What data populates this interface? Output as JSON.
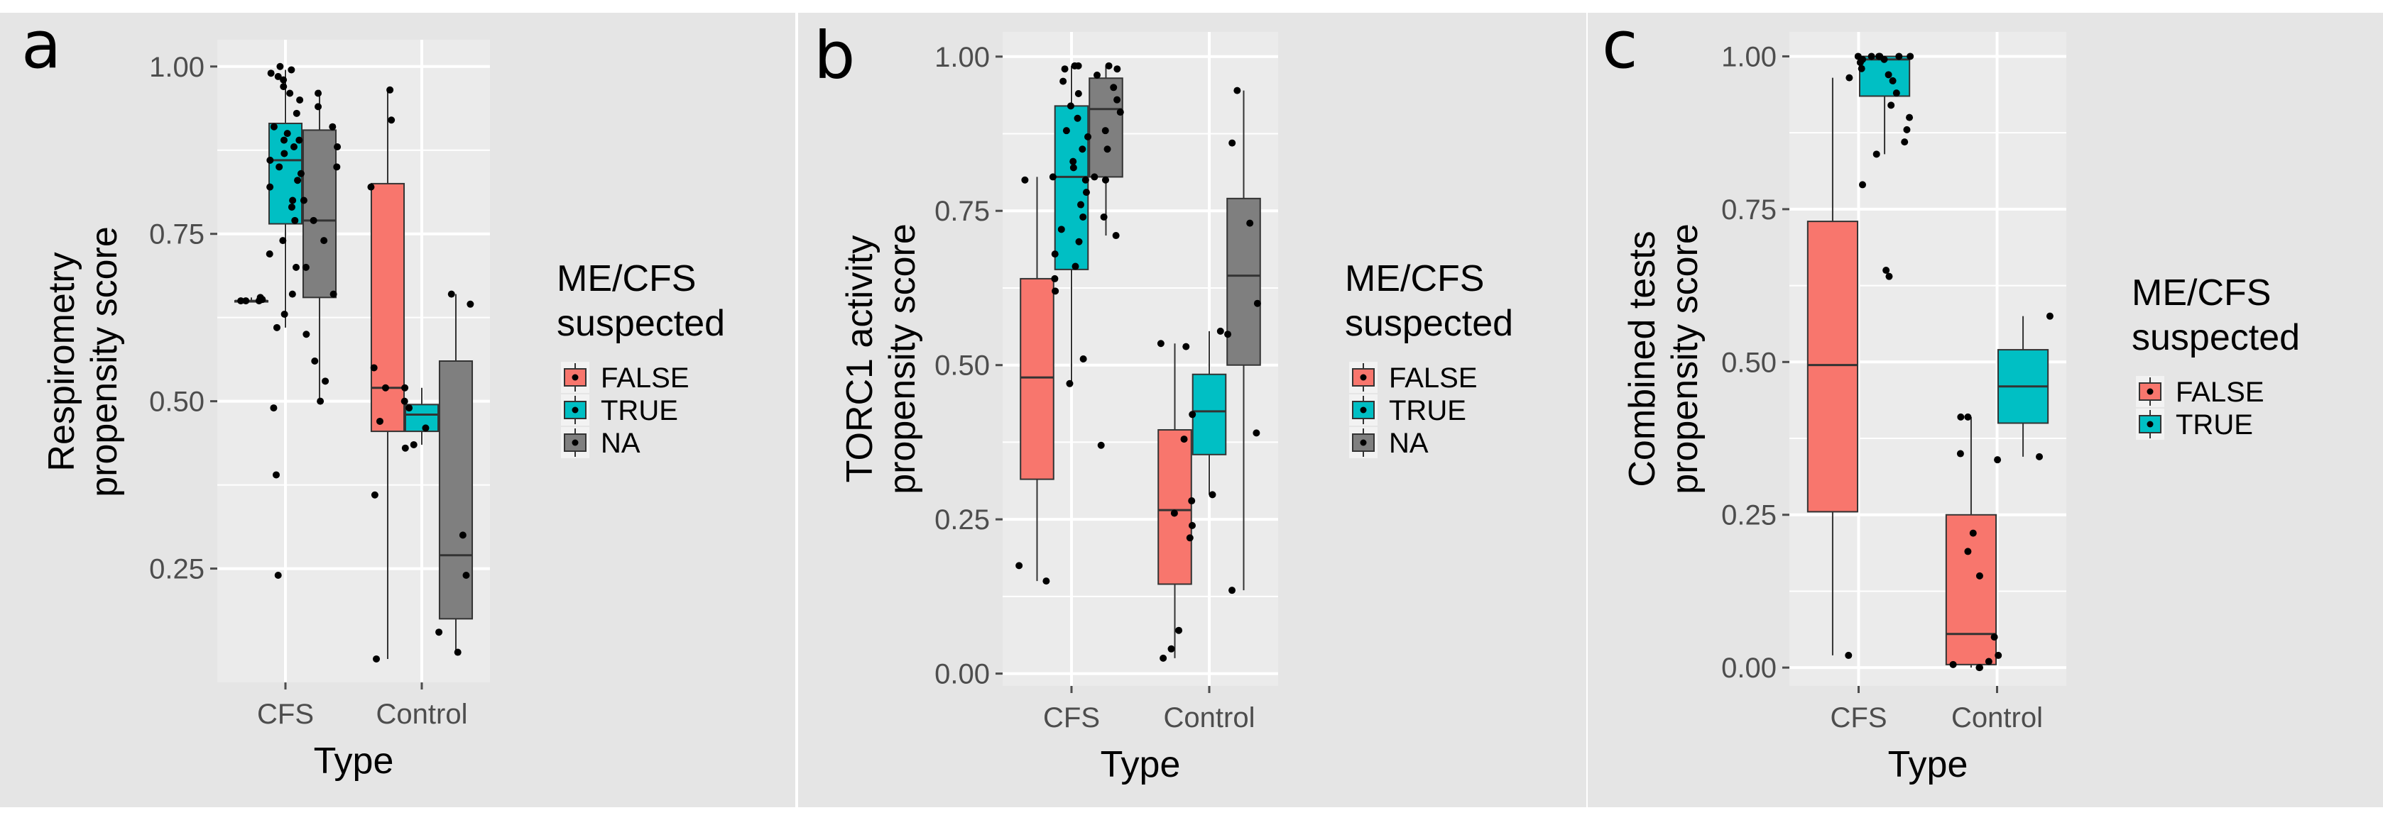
{
  "colors": {
    "false": "#F8766D",
    "true": "#00BFC4",
    "na": "#7F7F7F",
    "panel_bg": "#EBEBEB",
    "outer_bg": "#E5E5E5",
    "grid": "#FFFFFF",
    "axis_text": "#4D4D4D",
    "title_text": "#000000",
    "outline": "#333333"
  },
  "chart_data": [
    {
      "type": "box",
      "panel_letter": "a",
      "ylabel_line1": "Respirometry",
      "ylabel_line2": "propensity score",
      "xlabel": "Type",
      "categories": [
        "CFS",
        "Control"
      ],
      "ylim": [
        0.08,
        1.04
      ],
      "yticks": [
        0.25,
        0.5,
        0.75,
        1.0
      ],
      "ytick_labels": [
        "0.25",
        "0.50",
        "0.75",
        "1.00"
      ],
      "legend": {
        "title_line1": "ME/CFS",
        "title_line2": "suspected",
        "entries": [
          {
            "key": "false",
            "label": "FALSE"
          },
          {
            "key": "true",
            "label": "TRUE"
          },
          {
            "key": "na",
            "label": "NA"
          }
        ]
      },
      "groups": [
        "false",
        "true",
        "na"
      ],
      "boxes": [
        {
          "cat": 0,
          "group": "false",
          "min": 0.65,
          "q1": 0.65,
          "median": 0.65,
          "q3": 0.65,
          "max": 0.655
        },
        {
          "cat": 0,
          "group": "true",
          "min": 0.61,
          "q1": 0.765,
          "median": 0.86,
          "q3": 0.915,
          "max": 0.995
        },
        {
          "cat": 0,
          "group": "na",
          "min": 0.5,
          "q1": 0.655,
          "median": 0.77,
          "q3": 0.905,
          "max": 0.965
        },
        {
          "cat": 1,
          "group": "false",
          "min": 0.115,
          "q1": 0.455,
          "median": 0.52,
          "q3": 0.825,
          "max": 0.965
        },
        {
          "cat": 1,
          "group": "true",
          "min": 0.435,
          "q1": 0.455,
          "median": 0.48,
          "q3": 0.495,
          "max": 0.52
        },
        {
          "cat": 1,
          "group": "na",
          "min": 0.125,
          "q1": 0.175,
          "median": 0.27,
          "q3": 0.56,
          "max": 0.66
        }
      ],
      "points": [
        {
          "cat": 0,
          "group": "false",
          "values": [
            0.65,
            0.65,
            0.655,
            0.65,
            0.652
          ]
        },
        {
          "cat": 0,
          "group": "true",
          "values": [
            0.24,
            0.39,
            0.49,
            0.61,
            0.63,
            0.66,
            0.7,
            0.72,
            0.74,
            0.77,
            0.79,
            0.8,
            0.82,
            0.83,
            0.84,
            0.85,
            0.86,
            0.87,
            0.88,
            0.89,
            0.89,
            0.9,
            0.91,
            0.93,
            0.95,
            0.97,
            0.98,
            0.99,
            0.995,
            1.0,
            0.985,
            0.96
          ]
        },
        {
          "cat": 0,
          "group": "na",
          "values": [
            0.5,
            0.53,
            0.56,
            0.6,
            0.66,
            0.7,
            0.74,
            0.77,
            0.8,
            0.85,
            0.88,
            0.91,
            0.94,
            0.96
          ]
        },
        {
          "cat": 1,
          "group": "false",
          "values": [
            0.115,
            0.36,
            0.43,
            0.47,
            0.5,
            0.52,
            0.55,
            0.82,
            0.92,
            0.965
          ]
        },
        {
          "cat": 1,
          "group": "true",
          "values": [
            0.435,
            0.46,
            0.49,
            0.52
          ]
        },
        {
          "cat": 1,
          "group": "na",
          "values": [
            0.125,
            0.155,
            0.24,
            0.3,
            0.645,
            0.66
          ]
        }
      ]
    },
    {
      "type": "box",
      "panel_letter": "b",
      "ylabel_line1": "TORC1 activity",
      "ylabel_line2": "propensity score",
      "xlabel": "Type",
      "categories": [
        "CFS",
        "Control"
      ],
      "ylim": [
        -0.02,
        1.04
      ],
      "yticks": [
        0.0,
        0.25,
        0.5,
        0.75,
        1.0
      ],
      "ytick_labels": [
        "0.00",
        "0.25",
        "0.50",
        "0.75",
        "1.00"
      ],
      "legend": {
        "title_line1": "ME/CFS",
        "title_line2": "suspected",
        "entries": [
          {
            "key": "false",
            "label": "FALSE"
          },
          {
            "key": "true",
            "label": "TRUE"
          },
          {
            "key": "na",
            "label": "NA"
          }
        ]
      },
      "groups": [
        "false",
        "true",
        "na"
      ],
      "boxes": [
        {
          "cat": 0,
          "group": "false",
          "min": 0.15,
          "q1": 0.315,
          "median": 0.48,
          "q3": 0.64,
          "max": 0.805
        },
        {
          "cat": 0,
          "group": "true",
          "min": 0.47,
          "q1": 0.655,
          "median": 0.805,
          "q3": 0.92,
          "max": 0.985
        },
        {
          "cat": 0,
          "group": "na",
          "min": 0.71,
          "q1": 0.805,
          "median": 0.915,
          "q3": 0.965,
          "max": 0.985
        },
        {
          "cat": 1,
          "group": "false",
          "min": 0.025,
          "q1": 0.145,
          "median": 0.265,
          "q3": 0.395,
          "max": 0.535
        },
        {
          "cat": 1,
          "group": "true",
          "min": 0.29,
          "q1": 0.355,
          "median": 0.425,
          "q3": 0.485,
          "max": 0.555
        },
        {
          "cat": 1,
          "group": "na",
          "min": 0.135,
          "q1": 0.5,
          "median": 0.645,
          "q3": 0.77,
          "max": 0.945
        }
      ],
      "points": [
        {
          "cat": 0,
          "group": "false",
          "values": [
            0.15,
            0.175,
            0.8,
            0.805
          ]
        },
        {
          "cat": 0,
          "group": "true",
          "values": [
            0.47,
            0.51,
            0.62,
            0.64,
            0.66,
            0.68,
            0.7,
            0.72,
            0.74,
            0.76,
            0.78,
            0.8,
            0.82,
            0.83,
            0.85,
            0.87,
            0.88,
            0.9,
            0.92,
            0.94,
            0.96,
            0.98,
            0.985,
            0.985
          ]
        },
        {
          "cat": 0,
          "group": "na",
          "values": [
            0.37,
            0.71,
            0.74,
            0.8,
            0.85,
            0.88,
            0.91,
            0.93,
            0.95,
            0.97,
            0.98,
            0.985,
            0.805
          ]
        },
        {
          "cat": 1,
          "group": "false",
          "values": [
            0.025,
            0.04,
            0.07,
            0.22,
            0.24,
            0.26,
            0.28,
            0.38,
            0.53,
            0.535
          ]
        },
        {
          "cat": 1,
          "group": "true",
          "values": [
            0.29,
            0.42,
            0.555
          ]
        },
        {
          "cat": 1,
          "group": "na",
          "values": [
            0.135,
            0.39,
            0.55,
            0.6,
            0.73,
            0.86,
            0.945
          ]
        }
      ]
    },
    {
      "type": "box",
      "panel_letter": "c",
      "ylabel_line1": "Combined tests",
      "ylabel_line2": "propensity score",
      "xlabel": "Type",
      "categories": [
        "CFS",
        "Control"
      ],
      "ylim": [
        -0.03,
        1.04
      ],
      "yticks": [
        0.0,
        0.25,
        0.5,
        0.75,
        1.0
      ],
      "ytick_labels": [
        "0.00",
        "0.25",
        "0.50",
        "0.75",
        "1.00"
      ],
      "legend": {
        "title_line1": "ME/CFS",
        "title_line2": "suspected",
        "entries": [
          {
            "key": "false",
            "label": "FALSE"
          },
          {
            "key": "true",
            "label": "TRUE"
          }
        ]
      },
      "groups": [
        "false",
        "true"
      ],
      "boxes": [
        {
          "cat": 0,
          "group": "false",
          "min": 0.02,
          "q1": 0.255,
          "median": 0.495,
          "q3": 0.73,
          "max": 0.965
        },
        {
          "cat": 0,
          "group": "true",
          "min": 0.84,
          "q1": 0.935,
          "median": 0.995,
          "q3": 1.0,
          "max": 1.0
        },
        {
          "cat": 1,
          "group": "false",
          "min": 0.0,
          "q1": 0.005,
          "median": 0.055,
          "q3": 0.25,
          "max": 0.41
        },
        {
          "cat": 1,
          "group": "true",
          "min": 0.345,
          "q1": 0.4,
          "median": 0.46,
          "q3": 0.52,
          "max": 0.575
        }
      ],
      "points": [
        {
          "cat": 0,
          "group": "false",
          "values": [
            0.02,
            0.965
          ]
        },
        {
          "cat": 0,
          "group": "true",
          "values": [
            0.64,
            0.65,
            0.79,
            0.84,
            0.86,
            0.88,
            0.9,
            0.92,
            0.94,
            0.96,
            0.97,
            0.98,
            0.99,
            0.995,
            1.0,
            1.0,
            1.0,
            1.0,
            1.0,
            1.0,
            0.995
          ]
        },
        {
          "cat": 1,
          "group": "false",
          "values": [
            0.0,
            0.0,
            0.005,
            0.01,
            0.02,
            0.05,
            0.15,
            0.19,
            0.22,
            0.34,
            0.35,
            0.41,
            0.41
          ]
        },
        {
          "cat": 1,
          "group": "true",
          "values": [
            0.345,
            0.575
          ]
        }
      ]
    }
  ]
}
